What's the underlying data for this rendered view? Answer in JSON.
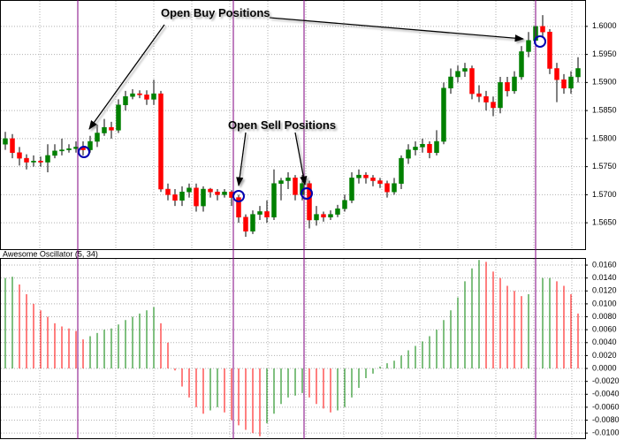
{
  "chart_data": [
    {
      "type": "candlestick",
      "annotations": [
        "Open Buy Positions",
        "Open Sell Positions"
      ],
      "up_color": "#008000",
      "down_color": "#ff0000",
      "ylim": [
        1.5603,
        1.6047
      ],
      "yticks": [
        {
          "value": 1.6,
          "label": "1.6000"
        },
        {
          "value": 1.595,
          "label": "1.5950"
        },
        {
          "value": 1.59,
          "label": "1.5900"
        },
        {
          "value": 1.585,
          "label": "1.5850"
        },
        {
          "value": 1.58,
          "label": "1.5800"
        },
        {
          "value": 1.575,
          "label": "1.5750"
        },
        {
          "value": 1.57,
          "label": "1.5700"
        },
        {
          "value": 1.565,
          "label": "1.5650"
        }
      ],
      "grid": true,
      "open": [
        1.579,
        1.58,
        1.5775,
        1.5765,
        1.5758,
        1.576,
        1.5758,
        1.577,
        1.5778,
        1.578,
        1.5782,
        1.5785,
        1.578,
        1.5795,
        1.581,
        1.582,
        1.5815,
        1.586,
        1.5875,
        1.588,
        1.5878,
        1.587,
        1.588,
        1.571,
        1.57,
        1.569,
        1.5705,
        1.5712,
        1.568,
        1.571,
        1.5705,
        1.57,
        1.5705,
        1.5695,
        1.566,
        1.5635,
        1.5665,
        1.567,
        1.566,
        1.572,
        1.5725,
        1.573,
        1.57,
        1.572,
        1.5655,
        1.5665,
        1.566,
        1.5665,
        1.5675,
        1.569,
        1.573,
        1.5735,
        1.573,
        1.5725,
        1.572,
        1.5705,
        1.572,
        1.5765,
        1.578,
        1.5785,
        1.579,
        1.5775,
        1.5795,
        1.589,
        1.591,
        1.592,
        1.5925,
        1.588,
        1.5875,
        1.5865,
        1.5855,
        1.59,
        1.5885,
        1.591,
        1.5955,
        1.5975,
        1.6,
        1.599,
        1.5925,
        1.5905,
        1.589,
        1.591
      ],
      "high": [
        1.5812,
        1.5808,
        1.5785,
        1.5772,
        1.577,
        1.5768,
        1.579,
        1.579,
        1.58,
        1.579,
        1.5795,
        1.5795,
        1.5805,
        1.5825,
        1.5835,
        1.583,
        1.587,
        1.5885,
        1.5888,
        1.5886,
        1.5886,
        1.5905,
        1.5885,
        1.572,
        1.571,
        1.5715,
        1.572,
        1.572,
        1.5715,
        1.5712,
        1.571,
        1.571,
        1.5708,
        1.57,
        1.5665,
        1.5672,
        1.568,
        1.569,
        1.5745,
        1.573,
        1.574,
        1.5735,
        1.5735,
        1.5725,
        1.568,
        1.567,
        1.5672,
        1.5682,
        1.57,
        1.574,
        1.5745,
        1.574,
        1.5735,
        1.573,
        1.5725,
        1.573,
        1.577,
        1.579,
        1.5795,
        1.58,
        1.5795,
        1.5815,
        1.59,
        1.5925,
        1.593,
        1.5935,
        1.593,
        1.5895,
        1.5885,
        1.5875,
        1.591,
        1.591,
        1.592,
        1.5965,
        1.599,
        1.6035,
        1.602,
        1.5995,
        1.5935,
        1.5915,
        1.592,
        1.5945
      ],
      "low": [
        1.578,
        1.5765,
        1.5752,
        1.5745,
        1.575,
        1.575,
        1.574,
        1.5765,
        1.577,
        1.5775,
        1.5775,
        1.577,
        1.5775,
        1.5785,
        1.5805,
        1.58,
        1.581,
        1.585,
        1.587,
        1.5872,
        1.586,
        1.586,
        1.5705,
        1.569,
        1.568,
        1.568,
        1.5695,
        1.567,
        1.567,
        1.5695,
        1.569,
        1.5695,
        1.568,
        1.565,
        1.5625,
        1.563,
        1.5655,
        1.565,
        1.5655,
        1.569,
        1.571,
        1.569,
        1.569,
        1.564,
        1.5645,
        1.5652,
        1.5655,
        1.566,
        1.567,
        1.5685,
        1.572,
        1.572,
        1.5715,
        1.5712,
        1.5695,
        1.57,
        1.571,
        1.5755,
        1.577,
        1.5775,
        1.5765,
        1.577,
        1.579,
        1.588,
        1.59,
        1.591,
        1.587,
        1.5865,
        1.585,
        1.584,
        1.5845,
        1.5875,
        1.588,
        1.5905,
        1.5945,
        1.597,
        1.598,
        1.5915,
        1.5865,
        1.588,
        1.588,
        1.59
      ],
      "close": [
        1.58,
        1.5775,
        1.5765,
        1.5758,
        1.576,
        1.5758,
        1.577,
        1.5778,
        1.578,
        1.5782,
        1.5785,
        1.578,
        1.5795,
        1.581,
        1.582,
        1.5815,
        1.586,
        1.5875,
        1.588,
        1.5878,
        1.587,
        1.588,
        1.571,
        1.57,
        1.569,
        1.5705,
        1.5712,
        1.568,
        1.571,
        1.5705,
        1.57,
        1.5705,
        1.5695,
        1.566,
        1.5635,
        1.5665,
        1.567,
        1.566,
        1.572,
        1.5725,
        1.573,
        1.57,
        1.572,
        1.5655,
        1.5665,
        1.566,
        1.5665,
        1.5675,
        1.569,
        1.573,
        1.5735,
        1.573,
        1.5725,
        1.572,
        1.5705,
        1.572,
        1.5765,
        1.578,
        1.5785,
        1.579,
        1.5775,
        1.5795,
        1.589,
        1.591,
        1.592,
        1.5925,
        1.588,
        1.5875,
        1.5865,
        1.5855,
        1.59,
        1.5885,
        1.591,
        1.5955,
        1.5975,
        1.6,
        1.599,
        1.5925,
        1.5905,
        1.589,
        1.591,
        1.5925
      ]
    },
    {
      "type": "bar",
      "title": "Awesome Oscillator (5, 34)",
      "up_color": "#008000",
      "down_color": "#ff0000",
      "ylim": [
        -0.0108,
        0.0171
      ],
      "yticks": [
        {
          "value": 0.016,
          "label": "0.0160"
        },
        {
          "value": 0.014,
          "label": "0.0140"
        },
        {
          "value": 0.012,
          "label": "0.0120"
        },
        {
          "value": 0.01,
          "label": "0.0100"
        },
        {
          "value": 0.008,
          "label": "0.0080"
        },
        {
          "value": 0.006,
          "label": "0.0060"
        },
        {
          "value": 0.004,
          "label": "0.0040"
        },
        {
          "value": 0.002,
          "label": "0.0020"
        },
        {
          "value": 0,
          "label": "0.0000"
        },
        {
          "value": -0.002,
          "label": "-0.0020"
        },
        {
          "value": -0.004,
          "label": "-0.0040"
        },
        {
          "value": -0.006,
          "label": "-0.0060"
        },
        {
          "value": -0.008,
          "label": "-0.0080"
        },
        {
          "value": -0.01,
          "label": "-0.0100"
        }
      ],
      "grid": true,
      "values": [
        0.014,
        0.0142,
        0.013,
        0.0115,
        0.01,
        0.009,
        0.008,
        0.007,
        0.0065,
        0.0062,
        0.0058,
        0.0045,
        0.005,
        0.0055,
        0.006,
        0.0062,
        0.0068,
        0.0075,
        0.008,
        0.0085,
        0.009,
        0.0095,
        0.007,
        0.004,
        -0.0003,
        -0.0028,
        -0.0045,
        -0.006,
        -0.007,
        -0.0065,
        -0.006,
        -0.0068,
        -0.008,
        -0.0088,
        -0.0095,
        -0.01,
        -0.0105,
        -0.0085,
        -0.007,
        -0.0055,
        -0.0045,
        -0.0042,
        -0.0038,
        -0.0045,
        -0.0055,
        -0.0062,
        -0.0068,
        -0.0065,
        -0.006,
        -0.0045,
        -0.003,
        -0.0015,
        -0.0008,
        0.0003,
        0.0008,
        0.0012,
        0.002,
        0.0028,
        0.0035,
        0.0042,
        0.005,
        0.006,
        0.0075,
        0.009,
        0.011,
        0.0135,
        0.0155,
        0.0168,
        0.0165,
        0.015,
        0.014,
        0.0128,
        0.012,
        0.0112,
        0.0115,
        0.013,
        0.014,
        0.014,
        0.0135,
        0.0128,
        0.0115,
        0.0085
      ]
    }
  ]
}
